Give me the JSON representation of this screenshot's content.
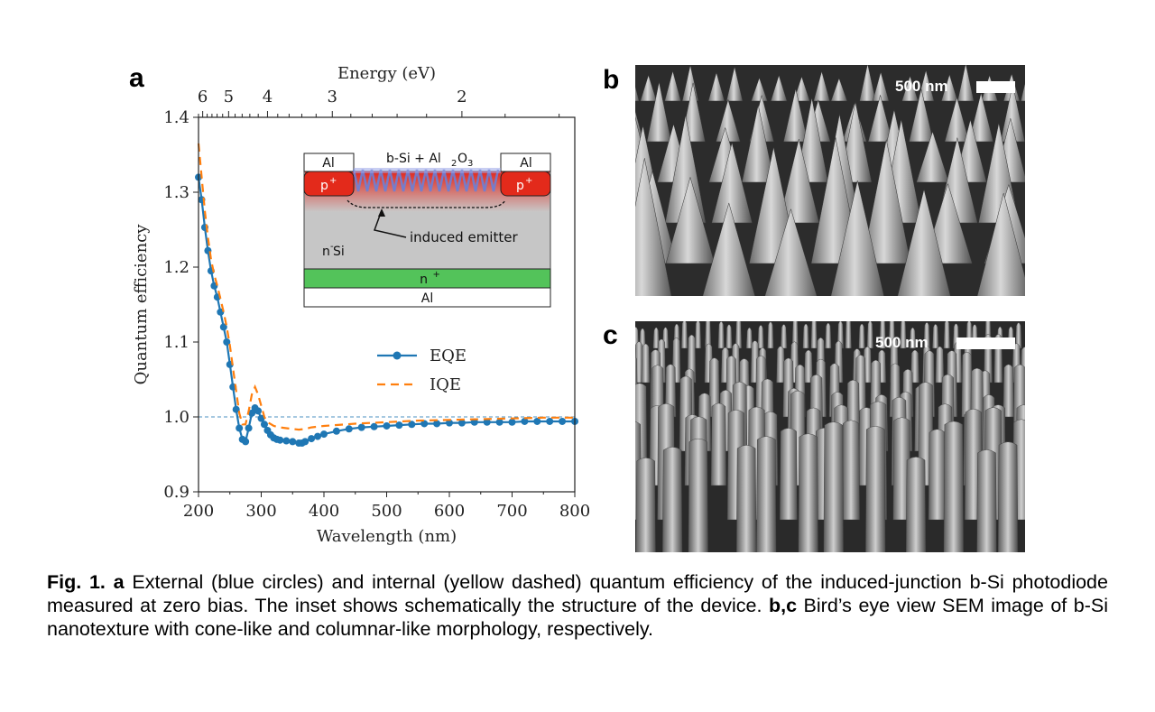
{
  "panels": {
    "a": "a",
    "b": "b",
    "c": "c"
  },
  "chart_data": {
    "type": "line",
    "xlabel": "Wavelength (nm)",
    "ylabel": "Quantum efficiency",
    "top_axis_label": "Energy (eV)",
    "xlim": [
      200,
      800
    ],
    "ylim": [
      0.9,
      1.4
    ],
    "x_ticks": [
      200,
      300,
      400,
      500,
      600,
      700,
      800
    ],
    "y_ticks": [
      0.9,
      1.0,
      1.1,
      1.2,
      1.3,
      1.4
    ],
    "top_ticks": [
      6,
      5,
      4,
      3,
      2
    ],
    "reference_line": 1.0,
    "legend_position": "center-right",
    "series": [
      {
        "name": "EQE",
        "color": "#1f77b4",
        "style": "solid-circle-markers",
        "x": [
          200,
          205,
          210,
          215,
          220,
          225,
          230,
          235,
          240,
          245,
          250,
          255,
          260,
          265,
          270,
          275,
          280,
          285,
          290,
          295,
          300,
          305,
          310,
          315,
          320,
          325,
          330,
          340,
          350,
          360,
          365,
          370,
          380,
          390,
          400,
          420,
          440,
          460,
          480,
          500,
          520,
          540,
          560,
          580,
          600,
          620,
          640,
          660,
          680,
          700,
          720,
          740,
          760,
          780,
          800
        ],
        "y": [
          1.32,
          1.29,
          1.253,
          1.222,
          1.195,
          1.175,
          1.16,
          1.14,
          1.12,
          1.1,
          1.07,
          1.04,
          1.01,
          0.985,
          0.97,
          0.967,
          0.985,
          1.005,
          1.012,
          1.008,
          0.998,
          0.99,
          0.982,
          0.976,
          0.972,
          0.97,
          0.969,
          0.968,
          0.967,
          0.965,
          0.965,
          0.967,
          0.971,
          0.974,
          0.977,
          0.981,
          0.984,
          0.986,
          0.987,
          0.988,
          0.989,
          0.99,
          0.991,
          0.991,
          0.992,
          0.992,
          0.993,
          0.993,
          0.993,
          0.993,
          0.994,
          0.994,
          0.994,
          0.994,
          0.994
        ]
      },
      {
        "name": "IQE",
        "color": "#ff7f0e",
        "style": "dashed",
        "x": [
          200,
          205,
          210,
          215,
          220,
          225,
          230,
          235,
          240,
          245,
          250,
          255,
          260,
          265,
          270,
          275,
          280,
          285,
          290,
          295,
          300,
          305,
          310,
          320,
          330,
          340,
          350,
          360,
          370,
          380,
          400,
          450,
          500,
          550,
          600,
          650,
          700,
          750,
          800
        ],
        "y": [
          1.365,
          1.32,
          1.275,
          1.24,
          1.21,
          1.19,
          1.175,
          1.158,
          1.14,
          1.12,
          1.095,
          1.065,
          1.035,
          1.005,
          0.99,
          0.99,
          1.008,
          1.03,
          1.04,
          1.03,
          1.015,
          1.0,
          0.993,
          0.988,
          0.986,
          0.985,
          0.984,
          0.983,
          0.984,
          0.986,
          0.988,
          0.991,
          0.993,
          0.995,
          0.996,
          0.997,
          0.998,
          0.999,
          0.999
        ]
      }
    ],
    "inset": {
      "al_left": "Al",
      "al_right": "Al",
      "p_left": "p",
      "p_right": "p",
      "p_sup": "+",
      "b_si_label": "b-Si + Al",
      "al2o3_sub2": "2",
      "al2o3_o": "O",
      "al2o3_sub3": "3",
      "induced_emitter": "induced emitter",
      "n_si": "n",
      "n_si_sup": "-",
      "n_si_tail": " Si",
      "n_plus": "n",
      "n_plus_sup": "+",
      "al_bottom": "Al"
    }
  },
  "sem_b": {
    "scale_label": "500 nm"
  },
  "sem_c": {
    "scale_label": "500 nm"
  },
  "caption": {
    "fig_label": "Fig. 1.",
    "a_label": "a",
    "text1": " External (blue circles) and internal (yellow dashed) quantum efficiency of the induced-junction b-Si photodiode measured at zero bias. The inset shows schematically the structure of the device. ",
    "bc_label": "b,c",
    "text2": " Bird’s eye view SEM image of b-Si nanotexture with cone-like and columnar-like morphology, respectively."
  }
}
